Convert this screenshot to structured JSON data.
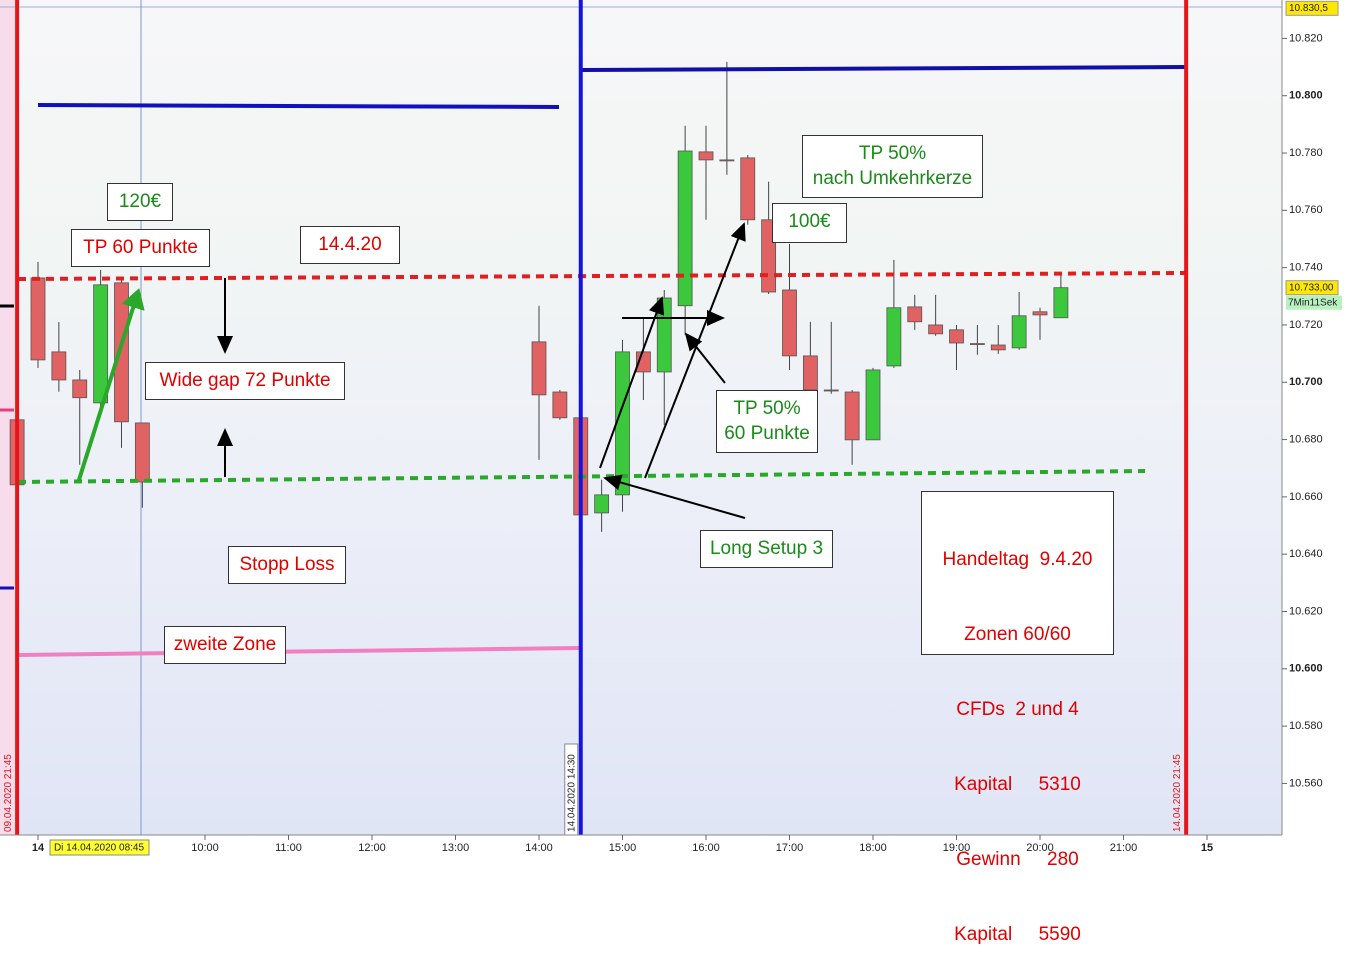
{
  "chart_data": {
    "type": "candlestick",
    "x": [
      7.75,
      8.0,
      8.25,
      8.5,
      8.75,
      9.0,
      9.25,
      14.0,
      14.25,
      14.5,
      14.75,
      15.0,
      15.25,
      15.5,
      15.75,
      16.0,
      16.25,
      16.5,
      16.75,
      17.0,
      17.25,
      17.5,
      17.75,
      18.0,
      18.25,
      18.5,
      18.75,
      19.0,
      19.25,
      19.5,
      19.75,
      20.0,
      20.25
    ],
    "open": [
      10.6869,
      10.7364,
      10.7106,
      10.7008,
      10.6928,
      10.7347,
      10.6858,
      10.7141,
      10.6966,
      10.6876,
      10.6544,
      10.6607,
      10.7106,
      10.7036,
      10.7267,
      10.7804,
      10.7776,
      10.7783,
      10.7567,
      10.7322,
      10.7092,
      10.6973,
      10.6966,
      10.6799,
      10.7057,
      10.7263,
      10.72,
      10.7183,
      10.7135,
      10.713,
      10.712,
      10.7246,
      10.7225
    ],
    "high": [
      10.687,
      10.742,
      10.721,
      10.7043,
      10.7392,
      10.7357,
      10.6858,
      10.7267,
      10.6973,
      10.6883,
      10.666,
      10.7148,
      10.7225,
      10.7322,
      10.7895,
      10.7895,
      10.8118,
      10.7793,
      10.77,
      10.7483,
      10.7211,
      10.7211,
      10.6973,
      10.705,
      10.7427,
      10.7305,
      10.7305,
      10.72,
      10.72,
      10.72,
      10.7315,
      10.726,
      10.7385
    ],
    "low": [
      10.664,
      10.705,
      10.6967,
      10.6712,
      10.6904,
      10.6771,
      10.6562,
      10.6729,
      10.6869,
      10.652,
      10.6478,
      10.6548,
      10.6938,
      10.6851,
      10.7165,
      10.7567,
      10.7724,
      10.755,
      10.7308,
      10.7043,
      10.6862,
      10.696,
      10.6712,
      10.6799,
      10.705,
      10.7183,
      10.7162,
      10.7043,
      10.7096,
      10.7099,
      10.7113,
      10.7148,
      10.7225
    ],
    "close": [
      10.6642,
      10.7078,
      10.7008,
      10.6946,
      10.734,
      10.6862,
      10.6652,
      10.6956,
      10.6876,
      10.6537,
      10.6607,
      10.7106,
      10.7036,
      10.7294,
      10.7807,
      10.7776,
      10.7773,
      10.7567,
      10.7315,
      10.7092,
      10.6973,
      10.697,
      10.6799,
      10.7043,
      10.726,
      10.7211,
      10.7169,
      10.7137,
      10.7132,
      10.7113,
      10.7232,
      10.7235,
      10.733
    ],
    "up_color": "#3cc83c",
    "down_color": "#e06262",
    "xlim": [
      7.545,
      22.898
    ],
    "xticks": [
      {
        "value": 8,
        "label": "14"
      },
      {
        "value": 10,
        "label": "10:00"
      },
      {
        "value": 11,
        "label": "11:00"
      },
      {
        "value": 12,
        "label": "12:00"
      },
      {
        "value": 13,
        "label": "13:00"
      },
      {
        "value": 14,
        "label": "14:00"
      },
      {
        "value": 15,
        "label": "15:00"
      },
      {
        "value": 16,
        "label": "16:00"
      },
      {
        "value": 17,
        "label": "17:00"
      },
      {
        "value": 18,
        "label": "18:00"
      },
      {
        "value": 19,
        "label": "19:00"
      },
      {
        "value": 20,
        "label": "20:00"
      },
      {
        "value": 21,
        "label": "21:00"
      },
      {
        "value": 22,
        "label": "15"
      }
    ],
    "ylim": [
      10.542,
      10.8334
    ],
    "yticks": [
      {
        "value": 10.56,
        "label": "10.560"
      },
      {
        "value": 10.58,
        "label": "10.580"
      },
      {
        "value": 10.6,
        "label": "10.600"
      },
      {
        "value": 10.62,
        "label": "10.620"
      },
      {
        "value": 10.64,
        "label": "10.640"
      },
      {
        "value": 10.66,
        "label": "10.660"
      },
      {
        "value": 10.68,
        "label": "10.680"
      },
      {
        "value": 10.7,
        "label": "10.700"
      },
      {
        "value": 10.72,
        "label": "10.720"
      },
      {
        "value": 10.74,
        "label": "10.740"
      },
      {
        "value": 10.76,
        "label": "10.760"
      },
      {
        "value": 10.78,
        "label": "10.780"
      },
      {
        "value": 10.8,
        "label": "10.800"
      },
      {
        "value": 10.82,
        "label": "10.820"
      }
    ],
    "cursor_label": "Di 14.04.2020 08:45",
    "price_labels": [
      {
        "value": 10.8305,
        "label": "10.830,5"
      },
      {
        "value": 10.733,
        "label": "10.733,00"
      }
    ],
    "countdown": "7Min11Sek",
    "vlines": [
      {
        "value": 7.75,
        "label": "09.04.2020 21:45",
        "color": "#e8141c"
      },
      {
        "value": 14.5,
        "label": "14.04.2020 14:30",
        "color": "#1414e0"
      },
      {
        "value": 21.75,
        "label": "14.04.2020 21:45",
        "color": "#e8141c"
      }
    ]
  },
  "annotations": [
    {
      "lines": [
        "120€"
      ]
    },
    {
      "lines": [
        "TP 60 Punkte"
      ]
    },
    {
      "lines": [
        "14.4.20"
      ]
    },
    {
      "lines": [
        "Wide gap 72 Punkte"
      ]
    },
    {
      "lines": [
        "Stopp Loss"
      ]
    },
    {
      "lines": [
        "zweite Zone"
      ]
    },
    {
      "lines": [
        "TP 50%",
        "nach Umkehrkerze"
      ]
    },
    {
      "lines": [
        "100€"
      ]
    },
    {
      "lines": [
        "TP 50%",
        "60 Punkte"
      ]
    },
    {
      "lines": [
        "Long Setup 3"
      ]
    },
    {
      "lines": [
        "Handeltag  9.4.20",
        "Zonen 60/60",
        "CFDs  2 und 4",
        "Kapital     5310",
        "Gewinn     280",
        "Kapital     5590"
      ]
    }
  ]
}
